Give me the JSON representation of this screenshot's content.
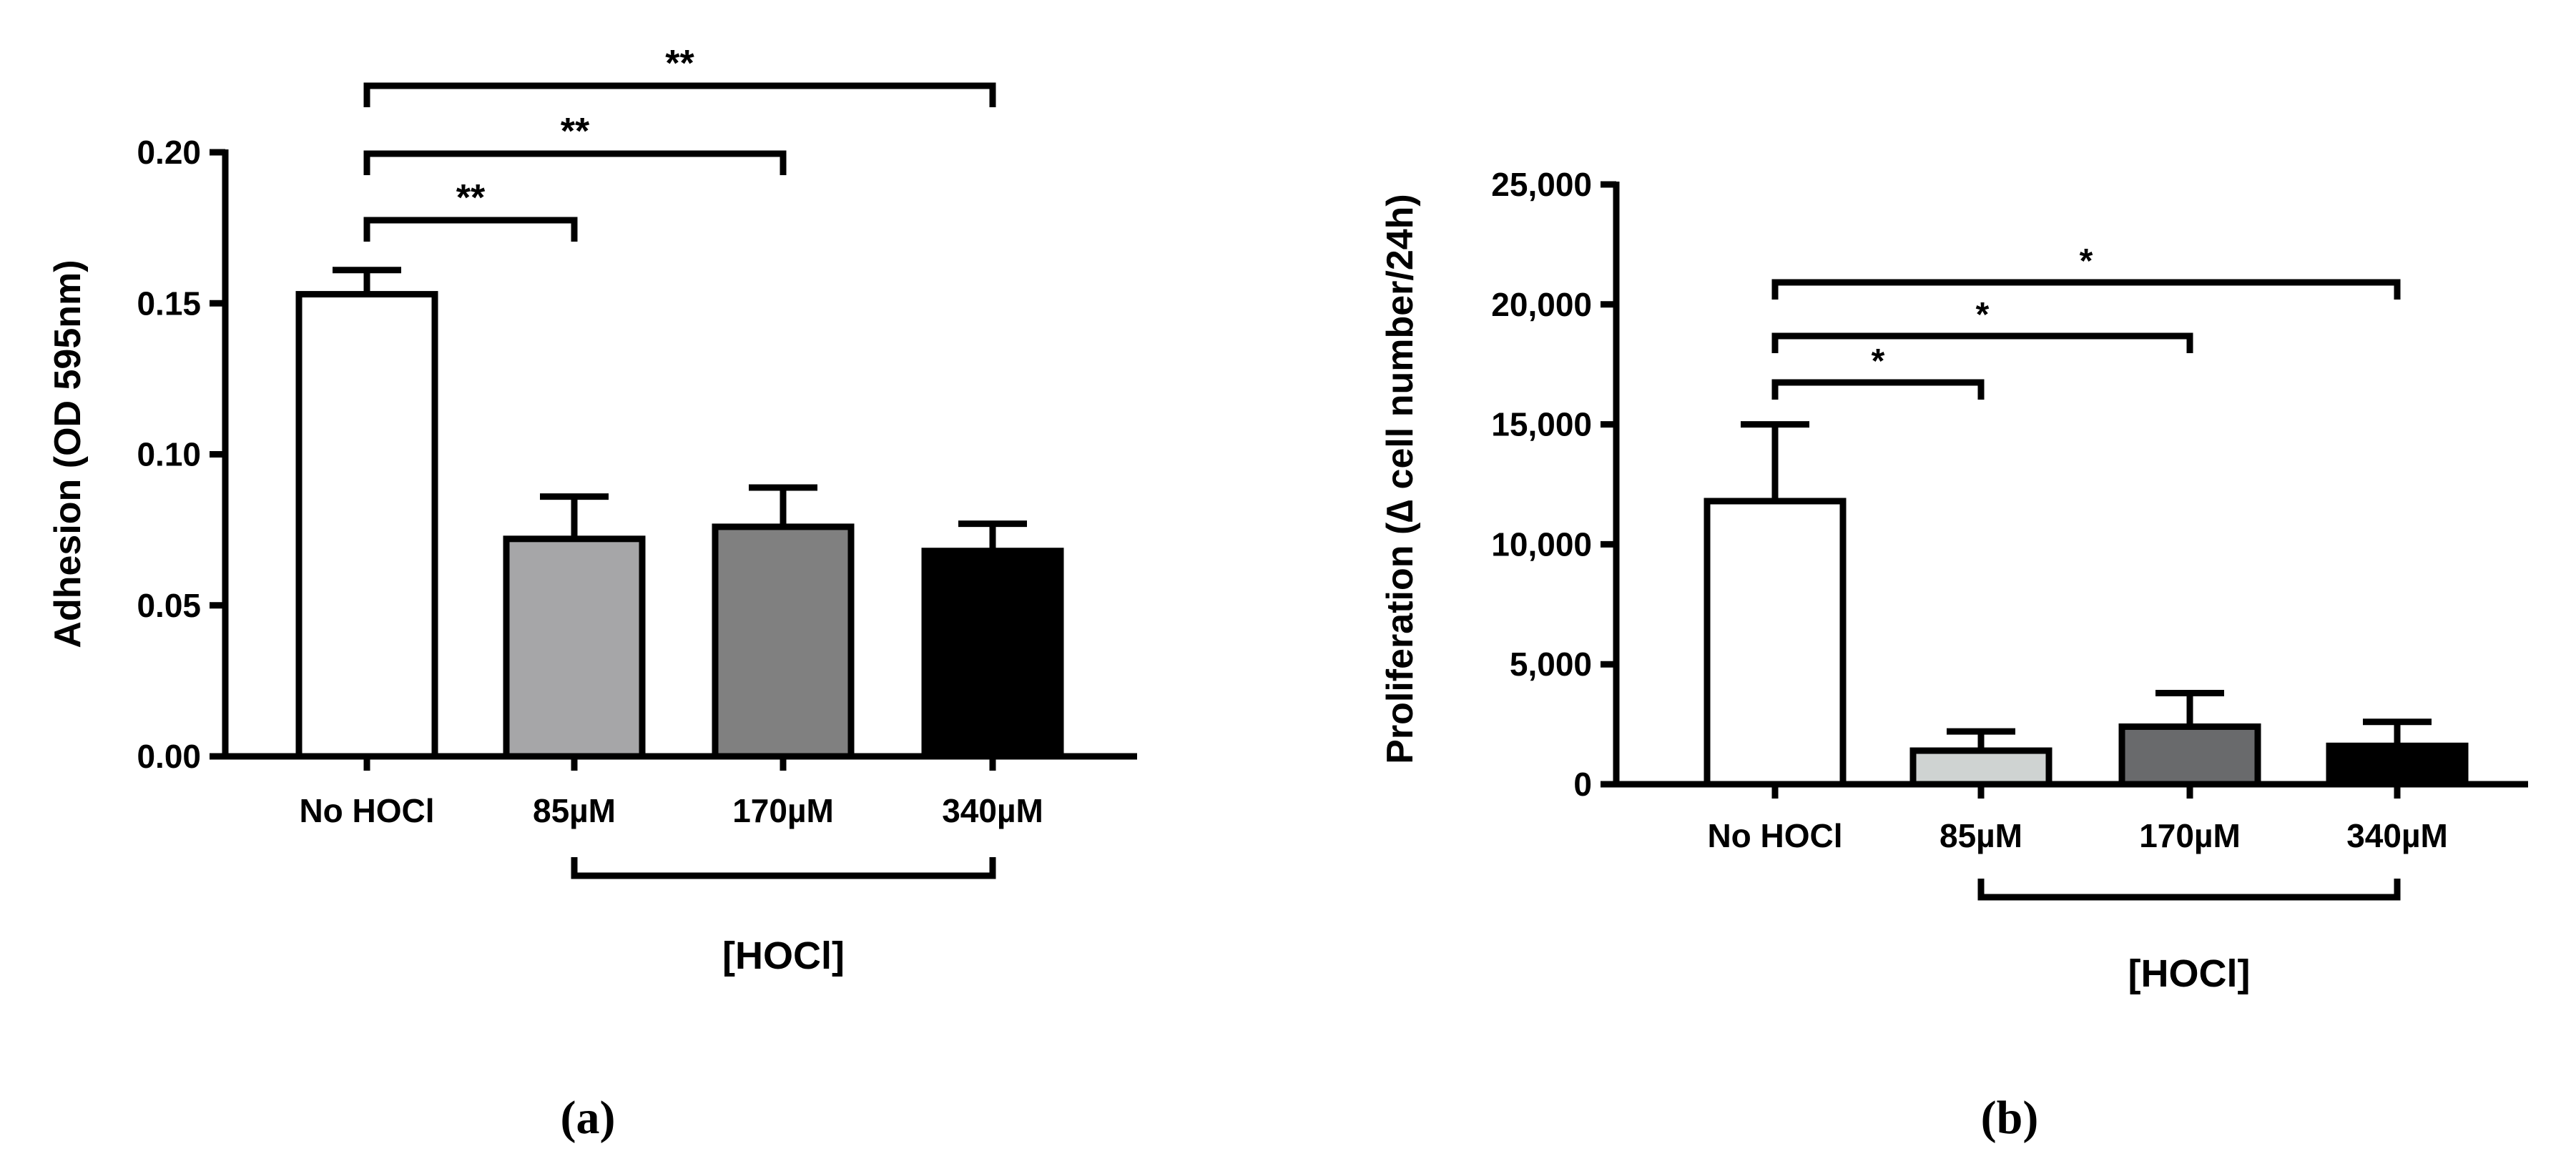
{
  "panels": [
    {
      "caption": "(a)",
      "chart_data": {
        "type": "bar",
        "ylabel": "Adhesion (OD 595nm)",
        "xlabel": "[HOCl]",
        "categories": [
          "No HOCl",
          "85µM",
          "170µM",
          "340µM"
        ],
        "values": [
          0.153,
          0.072,
          0.076,
          0.068
        ],
        "errors": [
          0.008,
          0.014,
          0.013,
          0.009
        ],
        "bar_colors": [
          "#ffffff",
          "#a6a6a8",
          "#808080",
          "#000000"
        ],
        "ylim": [
          0,
          0.2
        ],
        "yticks": [
          0,
          0.05,
          0.1,
          0.15,
          0.2
        ],
        "ytick_labels": [
          "0.00",
          "0.05",
          "0.10",
          "0.15",
          "0.20"
        ],
        "group_bracket": {
          "from": 1,
          "to": 3,
          "label": "[HOCl]"
        },
        "significance": [
          {
            "from": 0,
            "to": 1,
            "label": "**"
          },
          {
            "from": 0,
            "to": 2,
            "label": "**"
          },
          {
            "from": 0,
            "to": 3,
            "label": "**"
          }
        ]
      }
    },
    {
      "caption": "(b)",
      "chart_data": {
        "type": "bar",
        "ylabel": "Proliferation (∆ cell number/24h)",
        "xlabel": "[HOCl]",
        "categories": [
          "No HOCl",
          "85µM",
          "170µM",
          "340µM"
        ],
        "values": [
          11800,
          1400,
          2400,
          1600
        ],
        "errors": [
          3200,
          800,
          1400,
          1000
        ],
        "bar_colors": [
          "#ffffff",
          "#cfd3d2",
          "#696a6c",
          "#000000"
        ],
        "ylim": [
          0,
          25000
        ],
        "yticks": [
          0,
          5000,
          10000,
          15000,
          20000,
          25000
        ],
        "ytick_labels": [
          "0",
          "5,000",
          "10,000",
          "15,000",
          "20,000",
          "25,000"
        ],
        "group_bracket": {
          "from": 1,
          "to": 3,
          "label": "[HOCl]"
        },
        "significance": [
          {
            "from": 0,
            "to": 1,
            "label": "*"
          },
          {
            "from": 0,
            "to": 2,
            "label": "*"
          },
          {
            "from": 0,
            "to": 3,
            "label": "*"
          }
        ]
      }
    }
  ]
}
